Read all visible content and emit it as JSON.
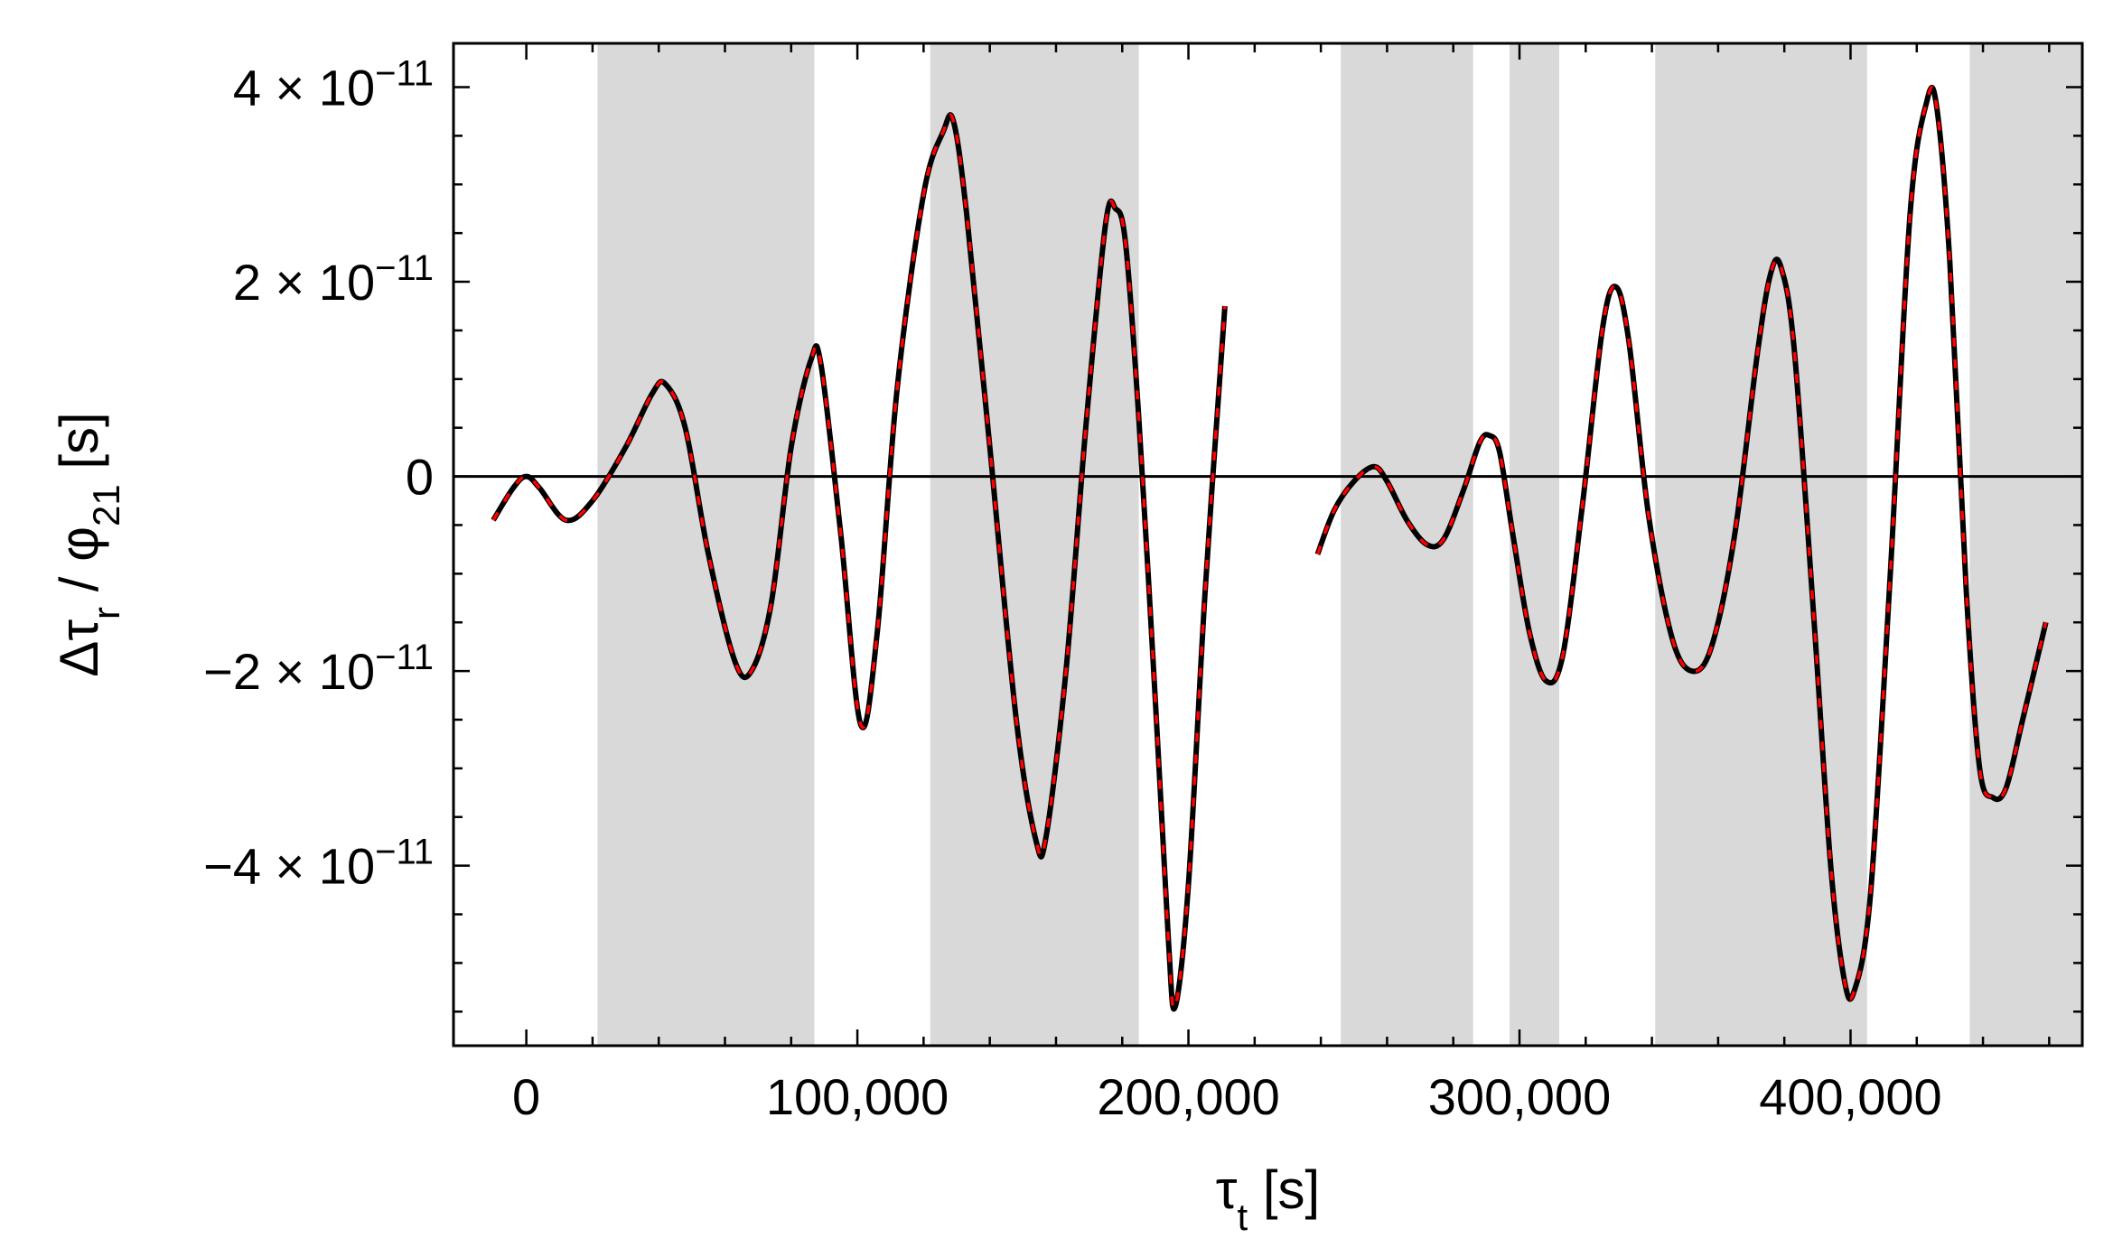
{
  "chart_data": {
    "type": "line",
    "xlabel": "τ_t [s]",
    "ylabel": "Δτ_r / φ_21 [s]",
    "xlim": [
      -22000,
      470000
    ],
    "ylim": [
      -5.85e-11,
      4.45e-11
    ],
    "x_ticks": [
      {
        "value": 0,
        "label": "0"
      },
      {
        "value": 100000,
        "label": "100,000"
      },
      {
        "value": 200000,
        "label": "200,000"
      },
      {
        "value": 300000,
        "label": "300,000"
      },
      {
        "value": 400000,
        "label": "400,000"
      }
    ],
    "y_ticks": [
      {
        "value": 4e-11,
        "mantissa": "4",
        "exponent": "−11",
        "sign": ""
      },
      {
        "value": 2e-11,
        "mantissa": "2",
        "exponent": "−11",
        "sign": ""
      },
      {
        "value": 0,
        "label": "0"
      },
      {
        "value": -2e-11,
        "mantissa": "2",
        "exponent": "−11",
        "sign": "−"
      },
      {
        "value": -4e-11,
        "mantissa": "4",
        "exponent": "−11",
        "sign": "−"
      }
    ],
    "times_sign": "×",
    "base": "10",
    "shaded_intervals": [
      [
        21500,
        87000
      ],
      [
        122000,
        185000
      ],
      [
        246000,
        286000
      ],
      [
        297000,
        312000
      ],
      [
        341000,
        405000
      ],
      [
        436000,
        470000
      ]
    ],
    "colors": {
      "shade": "#d9d9d9",
      "series_solid": "#000000",
      "series_dashed": "#ff0000",
      "zero_line": "#000000"
    },
    "series": [
      {
        "style": "solid black with red dashed overlay",
        "segments": [
          [
            [
              -10000,
              -4.5e-12
            ],
            [
              -4000,
              -1.2e-12
            ],
            [
              0,
              0.0
            ],
            [
              4000,
              -1.2e-12
            ],
            [
              12000,
              -4.5e-12
            ],
            [
              20000,
              -2.5e-12
            ],
            [
              30000,
              3e-12
            ],
            [
              38000,
              8.5e-12
            ],
            [
              42000,
              9.5e-12
            ],
            [
              48000,
              5e-12
            ],
            [
              55000,
              -8e-12
            ],
            [
              63000,
              -1.9e-11
            ],
            [
              68000,
              -2e-11
            ],
            [
              74000,
              -1.3e-11
            ],
            [
              80000,
              3e-12
            ],
            [
              86000,
              1.2e-11
            ],
            [
              89000,
              1.15e-11
            ],
            [
              95000,
              -6e-12
            ],
            [
              101000,
              -2.55e-11
            ],
            [
              106000,
              -1.6e-11
            ],
            [
              112000,
              9e-12
            ],
            [
              120000,
              2.9e-11
            ],
            [
              126000,
              3.55e-11
            ],
            [
              129000,
              3.65e-11
            ],
            [
              133000,
              2.7e-11
            ],
            [
              140000,
              3e-12
            ],
            [
              148000,
              -2.5e-11
            ],
            [
              154000,
              -3.75e-11
            ],
            [
              157000,
              -3.7e-11
            ],
            [
              163000,
              -2e-11
            ],
            [
              169000,
              5e-12
            ],
            [
              175000,
              2.6e-11
            ],
            [
              178000,
              2.75e-11
            ],
            [
              181000,
              2.4e-11
            ],
            [
              185000,
              6e-12
            ],
            [
              190000,
              -2.3e-11
            ],
            [
              194000,
              -4.8e-11
            ],
            [
              196000,
              -5.45e-11
            ],
            [
              200000,
              -4.2e-11
            ],
            [
              205000,
              -1.2e-11
            ],
            [
              211000,
              1.75e-11
            ]
          ],
          [
            [
              239000,
              -8e-12
            ],
            [
              244000,
              -3.5e-12
            ],
            [
              250000,
              -5e-13
            ],
            [
              256000,
              1e-12
            ],
            [
              260000,
              -5e-13
            ],
            [
              266000,
              -4.5e-12
            ],
            [
              272000,
              -7e-12
            ],
            [
              277000,
              -6.5e-12
            ],
            [
              283000,
              -1.5e-12
            ],
            [
              288000,
              3.5e-12
            ],
            [
              291000,
              4.2e-12
            ],
            [
              294000,
              2.5e-12
            ],
            [
              298000,
              -6e-12
            ],
            [
              303000,
              -1.6e-11
            ],
            [
              308000,
              -2.1e-11
            ],
            [
              313000,
              -1.85e-11
            ],
            [
              319000,
              -3e-12
            ],
            [
              325000,
              1.5e-11
            ],
            [
              329000,
              1.95e-11
            ],
            [
              333000,
              1.4e-11
            ],
            [
              339000,
              -4e-12
            ],
            [
              346000,
              -1.65e-11
            ],
            [
              352000,
              -2e-11
            ],
            [
              358000,
              -1.75e-11
            ],
            [
              365000,
              -6e-12
            ],
            [
              372000,
              1.3e-11
            ],
            [
              376000,
              2.1e-11
            ],
            [
              379000,
              2.15e-11
            ],
            [
              383000,
              1.3e-11
            ],
            [
              389000,
              -1.5e-11
            ],
            [
              394000,
              -4e-11
            ],
            [
              398000,
              -5.15e-11
            ],
            [
              401000,
              -5.3e-11
            ],
            [
              406000,
              -4.3e-11
            ],
            [
              412000,
              -1e-11
            ],
            [
              418000,
              2.7e-11
            ],
            [
              423000,
              3.85e-11
            ],
            [
              426000,
              3.8e-11
            ],
            [
              430000,
              2.2e-11
            ],
            [
              435000,
              -1.2e-11
            ],
            [
              439000,
              -3e-11
            ],
            [
              443000,
              -3.3e-11
            ],
            [
              447000,
              -3.2e-11
            ],
            [
              452000,
              -2.5e-11
            ],
            [
              459000,
              -1.5e-11
            ]
          ]
        ]
      }
    ]
  }
}
